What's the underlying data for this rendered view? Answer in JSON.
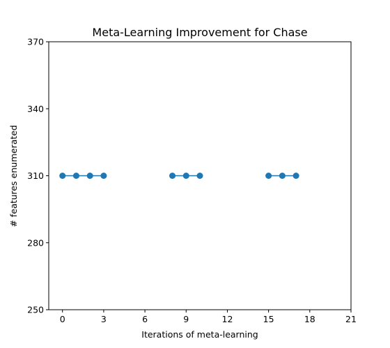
{
  "chart_data": {
    "type": "line",
    "title": "Meta-Learning Improvement for Chase",
    "xlabel": "Iterations of meta-learning",
    "ylabel": "# features enumerated",
    "xlim": [
      -1,
      21
    ],
    "ylim": [
      250,
      370
    ],
    "xticks": [
      0,
      3,
      6,
      9,
      12,
      15,
      18,
      21
    ],
    "yticks": [
      250,
      280,
      310,
      340,
      370
    ],
    "grid": false,
    "series": [
      {
        "color": "#1f77b4",
        "marker": "circle",
        "segments": [
          {
            "x": [
              0,
              1,
              2,
              3
            ],
            "y": [
              310,
              310,
              310,
              310
            ]
          },
          {
            "x": [
              8,
              9,
              10
            ],
            "y": [
              310,
              310,
              310
            ]
          },
          {
            "x": [
              15,
              16,
              17
            ],
            "y": [
              310,
              310,
              310
            ]
          }
        ]
      }
    ]
  }
}
